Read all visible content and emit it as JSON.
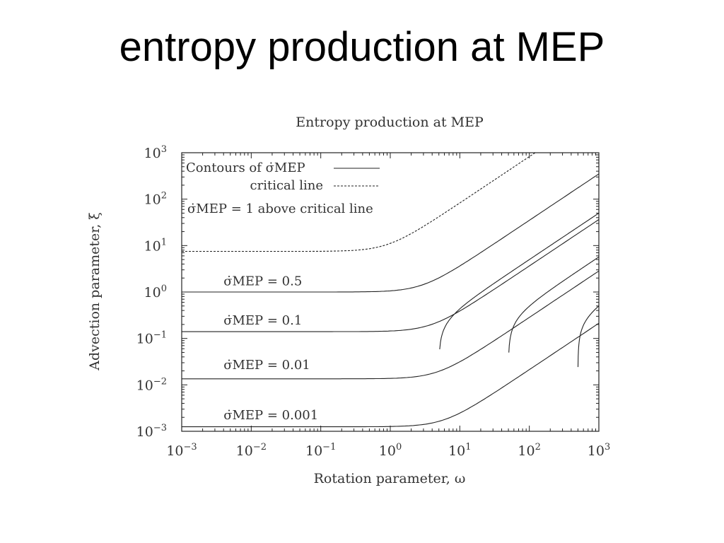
{
  "slide": {
    "title": "entropy production at MEP"
  },
  "chart_data": {
    "type": "line",
    "title": "Entropy production at MEP",
    "xlabel": "Rotation parameter, ω",
    "ylabel": "Advection parameter, ξ",
    "xscale": "log",
    "yscale": "log",
    "xlim": [
      0.001,
      1000
    ],
    "ylim": [
      0.001,
      1000
    ],
    "x_ticks": [
      {
        "value": 0.001,
        "base": "10",
        "exp": "−3"
      },
      {
        "value": 0.01,
        "base": "10",
        "exp": "−2"
      },
      {
        "value": 0.1,
        "base": "10",
        "exp": "−1"
      },
      {
        "value": 1,
        "base": "10",
        "exp": "0"
      },
      {
        "value": 10,
        "base": "10",
        "exp": "1"
      },
      {
        "value": 100,
        "base": "10",
        "exp": "2"
      },
      {
        "value": 1000,
        "base": "10",
        "exp": "3"
      }
    ],
    "y_ticks": [
      {
        "value": 0.001,
        "base": "10",
        "exp": "−3"
      },
      {
        "value": 0.01,
        "base": "10",
        "exp": "−2"
      },
      {
        "value": 0.1,
        "base": "10",
        "exp": "−1"
      },
      {
        "value": 1,
        "base": "10",
        "exp": "0"
      },
      {
        "value": 10,
        "base": "10",
        "exp": "1"
      },
      {
        "value": 100,
        "base": "10",
        "exp": "2"
      },
      {
        "value": 1000,
        "base": "10",
        "exp": "3"
      }
    ],
    "grid": false,
    "legend_position": "top-left",
    "legend": [
      {
        "label": "Contours of σ̇MEP",
        "style": "solid"
      },
      {
        "label": "critical line",
        "style": "dashed"
      }
    ],
    "region_note": "σ̇MEP = 1 above critical line",
    "contour_labels": [
      {
        "text": "σ̇MEP = 0.5",
        "x": 0.004,
        "y": 1.4
      },
      {
        "text": "σ̇MEP = 0.1",
        "x": 0.004,
        "y": 0.2
      },
      {
        "text": "σ̇MEP = 0.01",
        "x": 0.004,
        "y": 0.022
      },
      {
        "text": "σ̇MEP = 0.001",
        "x": 0.004,
        "y": 0.0018
      }
    ],
    "series": [
      {
        "name": "critical line",
        "style": "dashed",
        "asymptote_y": 7.5,
        "slope_x0": 1.1,
        "x_start": 0.001
      },
      {
        "name": "σ̇MEP = 0.5",
        "style": "solid",
        "asymptote_y": 1.0,
        "slope_x0": 0.35,
        "x_start": 0.001
      },
      {
        "name": "σ̇MEP = 0.1",
        "style": "solid",
        "asymptote_y": 0.14,
        "slope_x0": 0.26,
        "x_start": 0.001
      },
      {
        "name": "σ̇MEP = 0.01",
        "style": "solid",
        "asymptote_y": 0.0135,
        "slope_x0": 0.21,
        "x_start": 0.001
      },
      {
        "name": "σ̇MEP = 0.001",
        "style": "solid",
        "asymptote_y": 0.00125,
        "slope_x0": 0.17,
        "x_start": 0.001
      },
      {
        "name": "",
        "style": "solid",
        "asymptote_y": 0,
        "slope_x0": 0.05,
        "x_start": 5
      },
      {
        "name": "",
        "style": "solid",
        "asymptote_y": 0,
        "slope_x0": 0.0057,
        "x_start": 50
      },
      {
        "name": "",
        "style": "solid",
        "asymptote_y": 0,
        "slope_x0": 0.00058,
        "x_start": 500
      }
    ]
  }
}
